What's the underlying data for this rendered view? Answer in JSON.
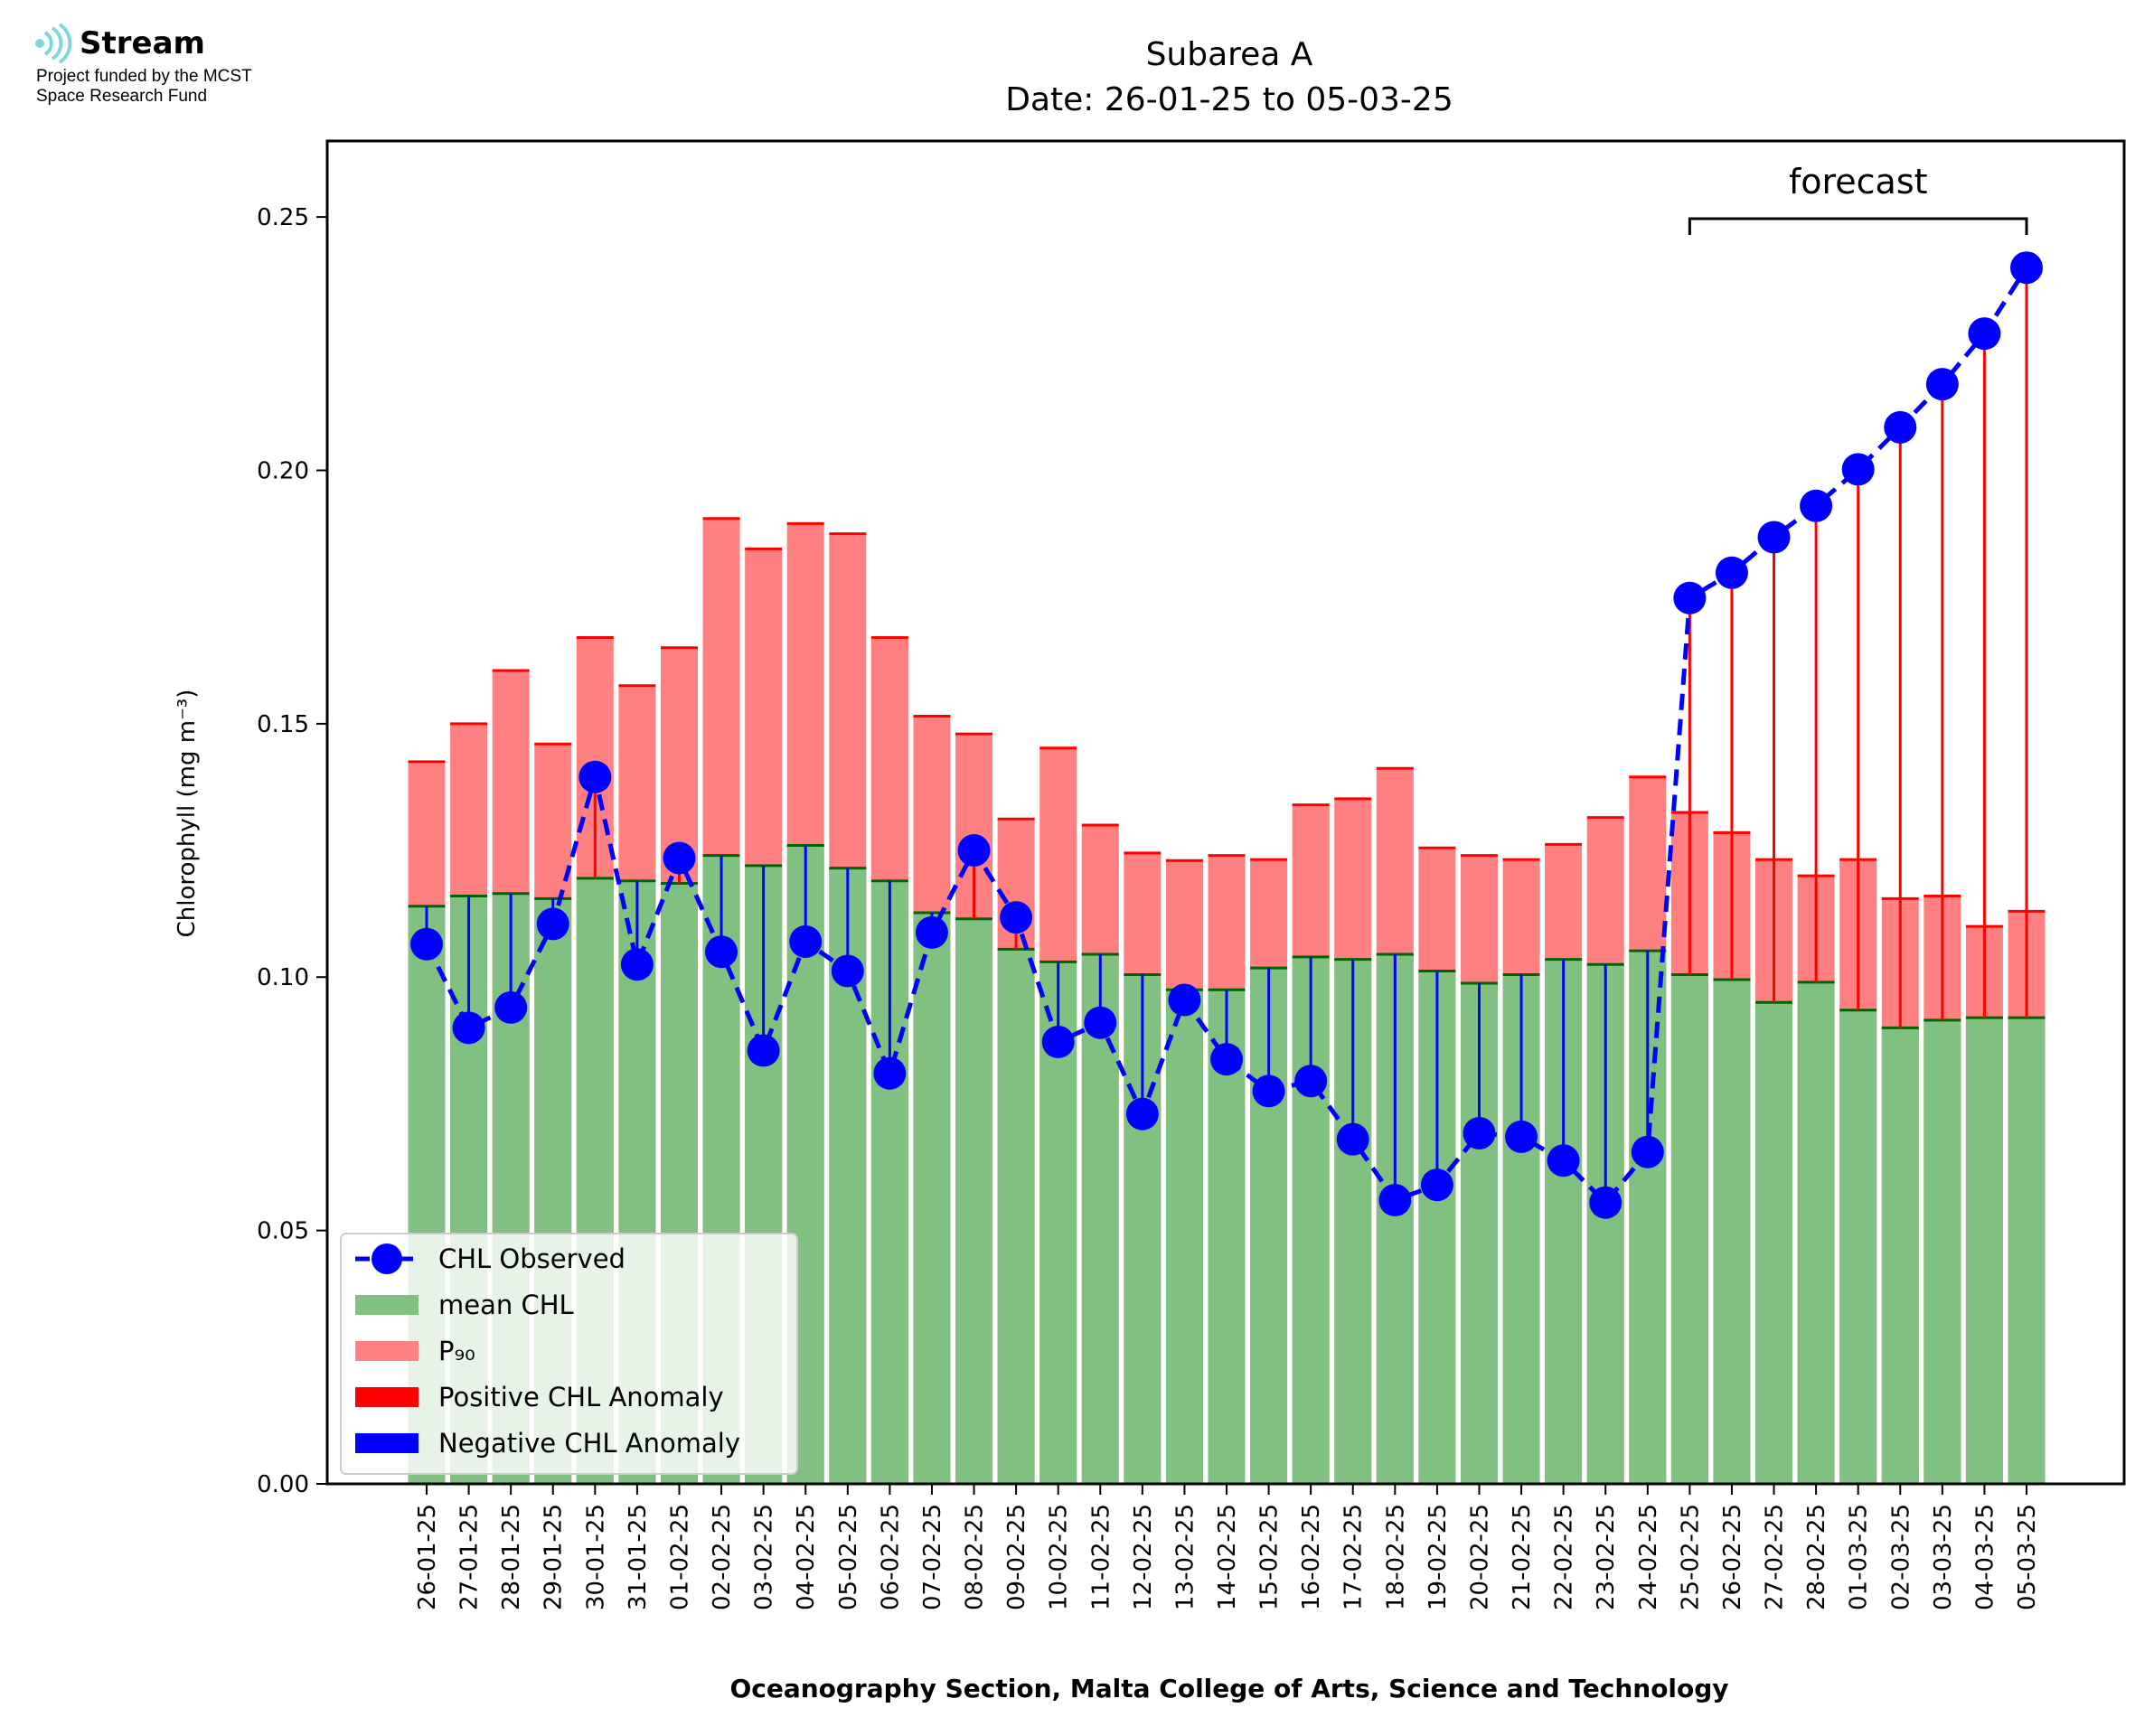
{
  "logo": {
    "name": "Stream",
    "line1": "Project funded by the MCST",
    "line2": "Space Research Fund",
    "color": "#7fd8d8"
  },
  "chart_data": {
    "type": "bar",
    "title_line1": "Subarea A",
    "title_line2": "Date: 26-01-25 to 05-03-25",
    "xlabel": "Oceanography Section, Malta College of Arts, Science and Technology",
    "ylabel": "Chlorophyll (mg m⁻³)",
    "ylim": [
      0,
      0.265
    ],
    "yticks": [
      0.0,
      0.05,
      0.1,
      0.15,
      0.2,
      0.25
    ],
    "ytick_labels": [
      "0.00",
      "0.05",
      "0.10",
      "0.15",
      "0.20",
      "0.25"
    ],
    "grid": false,
    "legend_position": "lower-left",
    "forecast_label": "forecast",
    "forecast_start": "25-02-25",
    "forecast_end": "05-03-25",
    "categories": [
      "26-01-25",
      "27-01-25",
      "28-01-25",
      "29-01-25",
      "30-01-25",
      "31-01-25",
      "01-02-25",
      "02-02-25",
      "03-02-25",
      "04-02-25",
      "05-02-25",
      "06-02-25",
      "07-02-25",
      "08-02-25",
      "09-02-25",
      "10-02-25",
      "11-02-25",
      "12-02-25",
      "13-02-25",
      "14-02-25",
      "15-02-25",
      "16-02-25",
      "17-02-25",
      "18-02-25",
      "19-02-25",
      "20-02-25",
      "21-02-25",
      "22-02-25",
      "23-02-25",
      "24-02-25",
      "25-02-25",
      "26-02-25",
      "27-02-25",
      "28-02-25",
      "01-03-25",
      "02-03-25",
      "03-03-25",
      "04-03-25",
      "05-03-25"
    ],
    "series": [
      {
        "name": "CHL Observed",
        "color": "#0000ff",
        "values": [
          0.1065,
          0.09,
          0.094,
          0.1105,
          0.1395,
          0.1025,
          0.1235,
          0.105,
          0.0855,
          0.107,
          0.1012,
          0.081,
          0.1088,
          0.125,
          0.1118,
          0.0872,
          0.091,
          0.073,
          0.0955,
          0.0838,
          0.0775,
          0.0795,
          0.068,
          0.056,
          0.059,
          0.0692,
          0.0685,
          0.0638,
          0.0555,
          0.0655,
          0.1748,
          0.1798,
          0.1868,
          0.193,
          0.2002,
          0.2085,
          0.217,
          0.227,
          0.24
        ]
      },
      {
        "name": "mean CHL",
        "color": "#80c080",
        "values": [
          0.114,
          0.116,
          0.1165,
          0.1155,
          0.1195,
          0.119,
          0.1185,
          0.124,
          0.122,
          0.126,
          0.1215,
          0.119,
          0.1127,
          0.1115,
          0.1055,
          0.103,
          0.1045,
          0.1005,
          0.0975,
          0.0975,
          0.1018,
          0.104,
          0.1035,
          0.1045,
          0.1012,
          0.0988,
          0.1005,
          0.1035,
          0.1025,
          0.1052,
          0.1005,
          0.0995,
          0.095,
          0.099,
          0.0935,
          0.09,
          0.0915,
          0.092,
          0.092
        ]
      },
      {
        "name": "P₉₀",
        "color": "#ff8080",
        "values": [
          0.1425,
          0.15,
          0.1605,
          0.146,
          0.167,
          0.1575,
          0.165,
          0.1905,
          0.1845,
          0.1895,
          0.1875,
          0.167,
          0.1515,
          0.148,
          0.1312,
          0.1452,
          0.13,
          0.1245,
          0.123,
          0.124,
          0.1232,
          0.134,
          0.1352,
          0.1412,
          0.1255,
          0.124,
          0.1232,
          0.1262,
          0.1315,
          0.1395,
          0.1325,
          0.1285,
          0.1232,
          0.12,
          0.1232,
          0.1155,
          0.116,
          0.11,
          0.113
        ]
      }
    ],
    "legend": [
      {
        "label": "CHL Observed",
        "kind": "line-marker",
        "color": "#0000ff"
      },
      {
        "label": "mean CHL",
        "kind": "patch",
        "color": "#80c080"
      },
      {
        "label": "P₉₀",
        "kind": "patch",
        "color": "#ff8080"
      },
      {
        "label": "Positive CHL Anomaly",
        "kind": "patch",
        "color": "#ff0000"
      },
      {
        "label": "Negative CHL Anomaly",
        "kind": "patch",
        "color": "#0000ff"
      }
    ]
  }
}
